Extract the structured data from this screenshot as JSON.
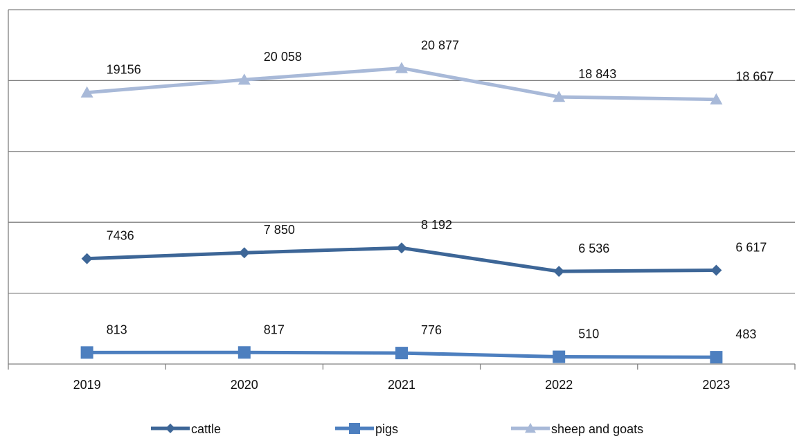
{
  "chart_data": {
    "type": "line",
    "categories": [
      "2019",
      "2020",
      "2021",
      "2022",
      "2023"
    ],
    "ylim": [
      0,
      25000
    ],
    "grid": true,
    "legend_position": "bottom",
    "series": [
      {
        "name": "cattle",
        "marker": "diamond",
        "color": "#3d6697",
        "values": [
          7436,
          7850,
          8192,
          6536,
          6617
        ],
        "labels": [
          "7436",
          "7 850",
          "8 192",
          "6 536",
          "6 617"
        ]
      },
      {
        "name": "pigs",
        "marker": "square",
        "color": "#4d7fbf",
        "values": [
          813,
          817,
          776,
          510,
          483
        ],
        "labels": [
          "813",
          "817",
          "776",
          "510",
          "483"
        ]
      },
      {
        "name": "sheep and goats",
        "marker": "triangle",
        "color": "#a8b9d8",
        "values": [
          19156,
          20058,
          20877,
          18843,
          18667
        ],
        "labels": [
          "19156",
          "20 058",
          "20 877",
          "18 843",
          "18 667"
        ]
      }
    ]
  }
}
